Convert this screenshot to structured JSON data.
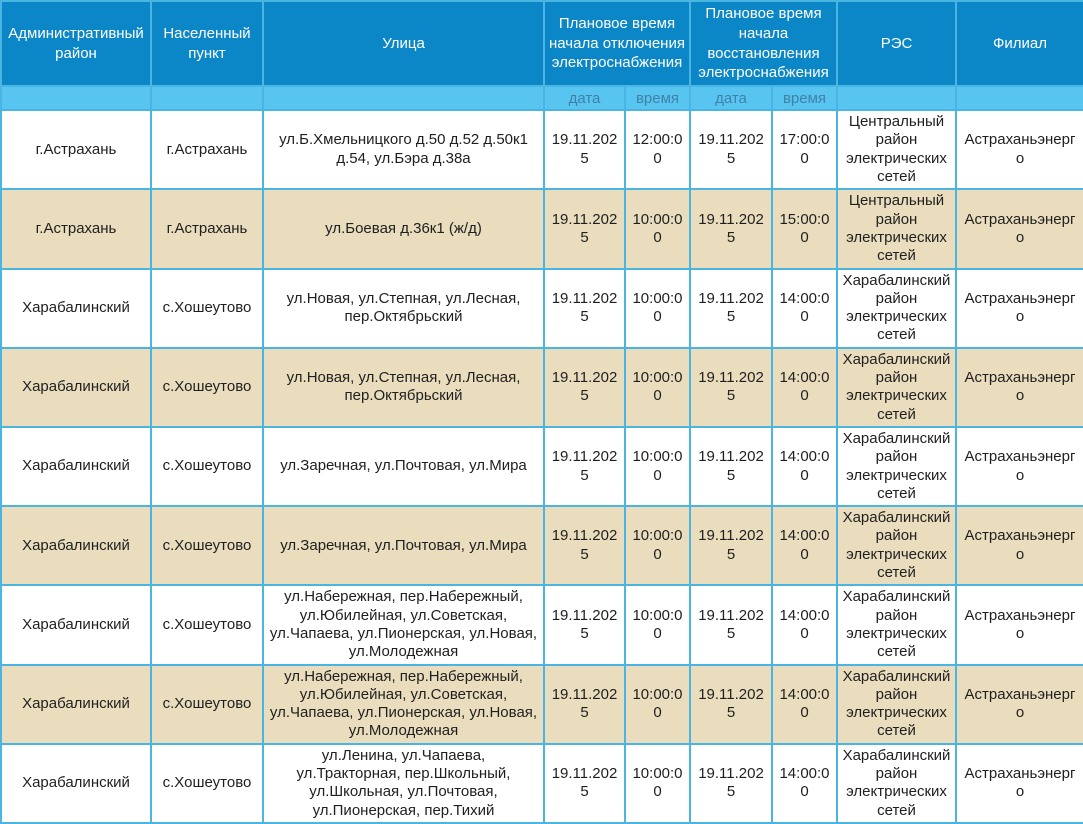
{
  "colors": {
    "header_bg": "#0b87c8",
    "subheader_bg": "#58c4f0",
    "subheader_text": "#3f82a8",
    "border": "#4ab5e3",
    "row_bg": "#ffffff",
    "row_alt_bg": "#eaddbe",
    "text": "#1f1f1f",
    "header_text": "#ffffff"
  },
  "table": {
    "columns": [
      {
        "key": "district",
        "label": "Административный район"
      },
      {
        "key": "settlement",
        "label": "Населенный пункт"
      },
      {
        "key": "streets",
        "label": "Улица"
      },
      {
        "key": "outage_start",
        "label": "Плановое время начала отключения электроснабжения"
      },
      {
        "key": "restore_start",
        "label": "Плановое время начала восстановления электроснабжения"
      },
      {
        "key": "res",
        "label": "РЭС"
      },
      {
        "key": "branch",
        "label": "Филиал"
      }
    ],
    "subheaders": {
      "date": "дата",
      "time": "время"
    },
    "rows": [
      {
        "district": "г.Астрахань",
        "settlement": "г.Астрахань",
        "streets": "ул.Б.Хмельницкого д.50 д.52 д.50к1 д.54, ул.Бэра д.38а",
        "off_date": "19.11.2025",
        "off_time": "12:00:00",
        "restore_date": "19.11.2025",
        "restore_time": "17:00:00",
        "res": "Центральный район электрических сетей",
        "branch": "Астраханьэнерго"
      },
      {
        "district": "г.Астрахань",
        "settlement": "г.Астрахань",
        "streets": "ул.Боевая д.36к1 (ж/д)",
        "off_date": "19.11.2025",
        "off_time": "10:00:00",
        "restore_date": "19.11.2025",
        "restore_time": "15:00:00",
        "res": "Центральный район электрических сетей",
        "branch": "Астраханьэнерго"
      },
      {
        "district": "Харабалинский",
        "settlement": "с.Хошеутово",
        "streets": "ул.Новая, ул.Степная, ул.Лесная, пер.Октябрьский",
        "off_date": "19.11.2025",
        "off_time": "10:00:00",
        "restore_date": "19.11.2025",
        "restore_time": "14:00:00",
        "res": "Харабалинский район электрических сетей",
        "branch": "Астраханьэнерго"
      },
      {
        "district": "Харабалинский",
        "settlement": "с.Хошеутово",
        "streets": "ул.Новая, ул.Степная, ул.Лесная, пер.Октябрьский",
        "off_date": "19.11.2025",
        "off_time": "10:00:00",
        "restore_date": "19.11.2025",
        "restore_time": "14:00:00",
        "res": "Харабалинский район электрических сетей",
        "branch": "Астраханьэнерго"
      },
      {
        "district": "Харабалинский",
        "settlement": "с.Хошеутово",
        "streets": "ул.Заречная, ул.Почтовая, ул.Мира",
        "off_date": "19.11.2025",
        "off_time": "10:00:00",
        "restore_date": "19.11.2025",
        "restore_time": "14:00:00",
        "res": "Харабалинский район электрических сетей",
        "branch": "Астраханьэнерго"
      },
      {
        "district": "Харабалинский",
        "settlement": "с.Хошеутово",
        "streets": "ул.Заречная, ул.Почтовая, ул.Мира",
        "off_date": "19.11.2025",
        "off_time": "10:00:00",
        "restore_date": "19.11.2025",
        "restore_time": "14:00:00",
        "res": "Харабалинский район электрических сетей",
        "branch": "Астраханьэнерго"
      },
      {
        "district": "Харабалинский",
        "settlement": "с.Хошеутово",
        "streets": "ул.Набережная, пер.Набережный, ул.Юбилейная, ул.Советская, ул.Чапаева, ул.Пионерская, ул.Новая, ул.Молодежная",
        "off_date": "19.11.2025",
        "off_time": "10:00:00",
        "restore_date": "19.11.2025",
        "restore_time": "14:00:00",
        "res": "Харабалинский район электрических сетей",
        "branch": "Астраханьэнерго"
      },
      {
        "district": "Харабалинский",
        "settlement": "с.Хошеутово",
        "streets": "ул.Набережная, пер.Набережный, ул.Юбилейная, ул.Советская, ул.Чапаева, ул.Пионерская, ул.Новая, ул.Молодежная",
        "off_date": "19.11.2025",
        "off_time": "10:00:00",
        "restore_date": "19.11.2025",
        "restore_time": "14:00:00",
        "res": "Харабалинский район электрических сетей",
        "branch": "Астраханьэнерго"
      },
      {
        "district": "Харабалинский",
        "settlement": "с.Хошеутово",
        "streets": "ул.Ленина, ул.Чапаева, ул.Тракторная, пер.Школьный, ул.Школьная, ул.Почтовая, ул.Пионерская, пер.Тихий",
        "off_date": "19.11.2025",
        "off_time": "10:00:00",
        "restore_date": "19.11.2025",
        "restore_time": "14:00:00",
        "res": "Харабалинский район электрических сетей",
        "branch": "Астраханьэнерго"
      }
    ]
  }
}
